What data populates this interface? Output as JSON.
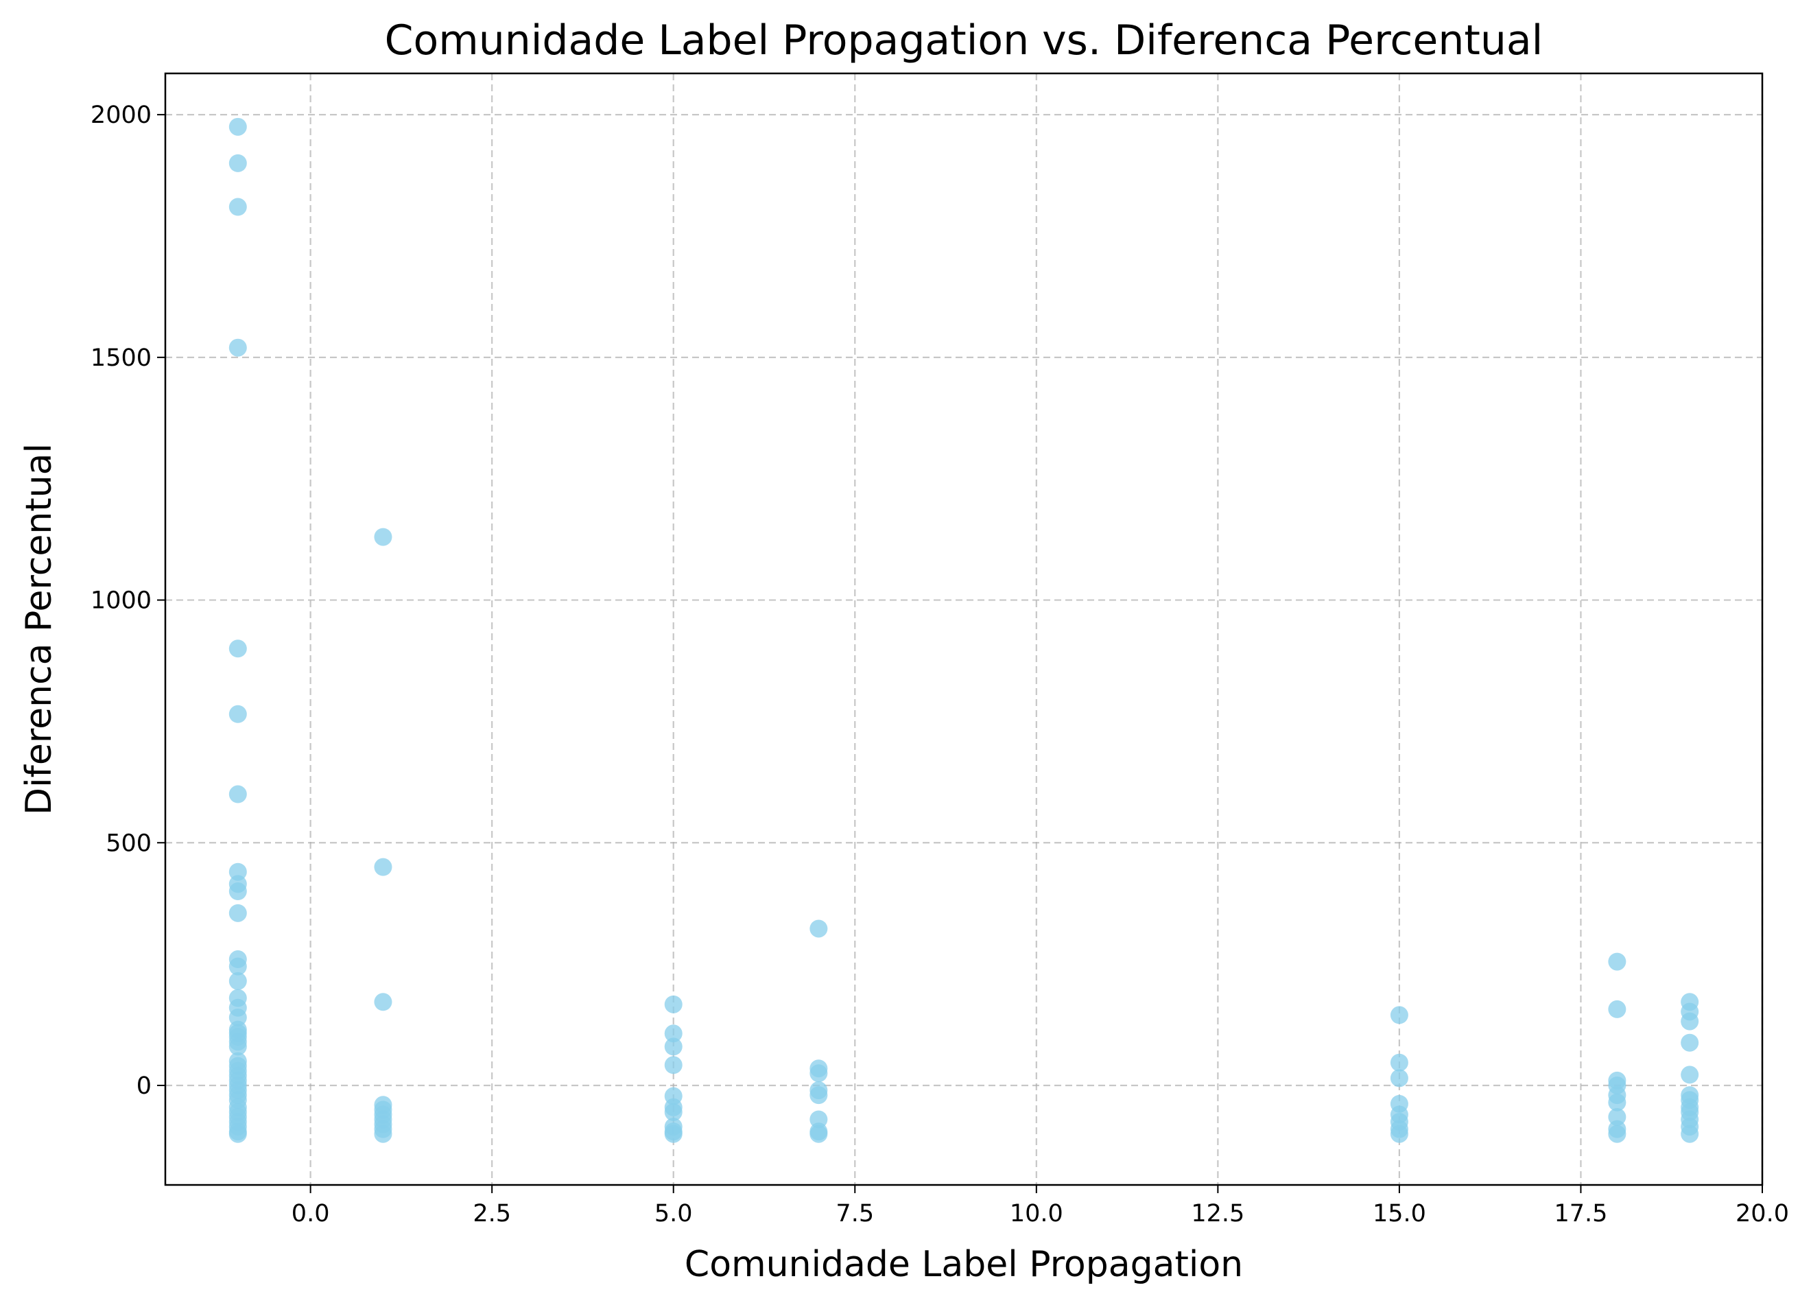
{
  "chart_data": {
    "type": "scatter",
    "title": "Comunidade Label Propagation vs. Diferenca Percentual",
    "xlabel": "Comunidade Label Propagation",
    "ylabel": "Diferenca Percentual",
    "xlim": [
      -2.0,
      20.0
    ],
    "ylim": [
      -205,
      2085
    ],
    "xticks": [
      0.0,
      2.5,
      5.0,
      7.5,
      10.0,
      12.5,
      15.0,
      17.5,
      20.0
    ],
    "xtick_labels": [
      "0.0",
      "2.5",
      "5.0",
      "7.5",
      "10.0",
      "12.5",
      "15.0",
      "17.5",
      "20.0"
    ],
    "yticks": [
      0,
      500,
      1000,
      1500,
      2000
    ],
    "ytick_labels": [
      "0",
      "500",
      "1000",
      "1500",
      "2000"
    ],
    "grid": true,
    "marker_color": "#87ceeb",
    "marker_alpha": 0.75,
    "series": [
      {
        "points": [
          {
            "x": -1,
            "y": 1975
          },
          {
            "x": -1,
            "y": 1900
          },
          {
            "x": -1,
            "y": 1810
          },
          {
            "x": -1,
            "y": 1520
          },
          {
            "x": -1,
            "y": 900
          },
          {
            "x": -1,
            "y": 765
          },
          {
            "x": -1,
            "y": 600
          },
          {
            "x": -1,
            "y": 440
          },
          {
            "x": -1,
            "y": 415
          },
          {
            "x": -1,
            "y": 400
          },
          {
            "x": -1,
            "y": 355
          },
          {
            "x": -1,
            "y": 260
          },
          {
            "x": -1,
            "y": 245
          },
          {
            "x": -1,
            "y": 215
          },
          {
            "x": -1,
            "y": 180
          },
          {
            "x": -1,
            "y": 160
          },
          {
            "x": -1,
            "y": 140
          },
          {
            "x": -1,
            "y": 115
          },
          {
            "x": -1,
            "y": 108
          },
          {
            "x": -1,
            "y": 100
          },
          {
            "x": -1,
            "y": 90
          },
          {
            "x": -1,
            "y": 80
          },
          {
            "x": -1,
            "y": 50
          },
          {
            "x": -1,
            "y": 40
          },
          {
            "x": -1,
            "y": 30
          },
          {
            "x": -1,
            "y": 20
          },
          {
            "x": -1,
            "y": 10
          },
          {
            "x": -1,
            "y": 0
          },
          {
            "x": -1,
            "y": -10
          },
          {
            "x": -1,
            "y": -20
          },
          {
            "x": -1,
            "y": -30
          },
          {
            "x": -1,
            "y": -45
          },
          {
            "x": -1,
            "y": -55
          },
          {
            "x": -1,
            "y": -65
          },
          {
            "x": -1,
            "y": -75
          },
          {
            "x": -1,
            "y": -85
          },
          {
            "x": -1,
            "y": -95
          },
          {
            "x": -1,
            "y": -100
          },
          {
            "x": 1,
            "y": 1130
          },
          {
            "x": 1,
            "y": 450
          },
          {
            "x": 1,
            "y": 172
          },
          {
            "x": 1,
            "y": -40
          },
          {
            "x": 1,
            "y": -50
          },
          {
            "x": 1,
            "y": -60
          },
          {
            "x": 1,
            "y": -70
          },
          {
            "x": 1,
            "y": -80
          },
          {
            "x": 1,
            "y": -90
          },
          {
            "x": 1,
            "y": -100
          },
          {
            "x": 5,
            "y": 167
          },
          {
            "x": 5,
            "y": 107
          },
          {
            "x": 5,
            "y": 80
          },
          {
            "x": 5,
            "y": 42
          },
          {
            "x": 5,
            "y": -22
          },
          {
            "x": 5,
            "y": -45
          },
          {
            "x": 5,
            "y": -55
          },
          {
            "x": 5,
            "y": -85
          },
          {
            "x": 5,
            "y": -95
          },
          {
            "x": 5,
            "y": -100
          },
          {
            "x": 7,
            "y": 323
          },
          {
            "x": 7,
            "y": 35
          },
          {
            "x": 7,
            "y": 25
          },
          {
            "x": 7,
            "y": -10
          },
          {
            "x": 7,
            "y": -20
          },
          {
            "x": 7,
            "y": -70
          },
          {
            "x": 7,
            "y": -95
          },
          {
            "x": 7,
            "y": -100
          },
          {
            "x": 15,
            "y": 145
          },
          {
            "x": 15,
            "y": 47
          },
          {
            "x": 15,
            "y": 15
          },
          {
            "x": 15,
            "y": -38
          },
          {
            "x": 15,
            "y": -60
          },
          {
            "x": 15,
            "y": -75
          },
          {
            "x": 15,
            "y": -90
          },
          {
            "x": 15,
            "y": -100
          },
          {
            "x": 18,
            "y": 255
          },
          {
            "x": 18,
            "y": 157
          },
          {
            "x": 18,
            "y": 10
          },
          {
            "x": 18,
            "y": 0
          },
          {
            "x": 18,
            "y": -20
          },
          {
            "x": 18,
            "y": -35
          },
          {
            "x": 18,
            "y": -65
          },
          {
            "x": 18,
            "y": -90
          },
          {
            "x": 18,
            "y": -100
          },
          {
            "x": 19,
            "y": 172
          },
          {
            "x": 19,
            "y": 152
          },
          {
            "x": 19,
            "y": 132
          },
          {
            "x": 19,
            "y": 88
          },
          {
            "x": 19,
            "y": 22
          },
          {
            "x": 19,
            "y": -20
          },
          {
            "x": 19,
            "y": -30
          },
          {
            "x": 19,
            "y": -45
          },
          {
            "x": 19,
            "y": -55
          },
          {
            "x": 19,
            "y": -70
          },
          {
            "x": 19,
            "y": -85
          },
          {
            "x": 19,
            "y": -100
          }
        ]
      }
    ]
  }
}
